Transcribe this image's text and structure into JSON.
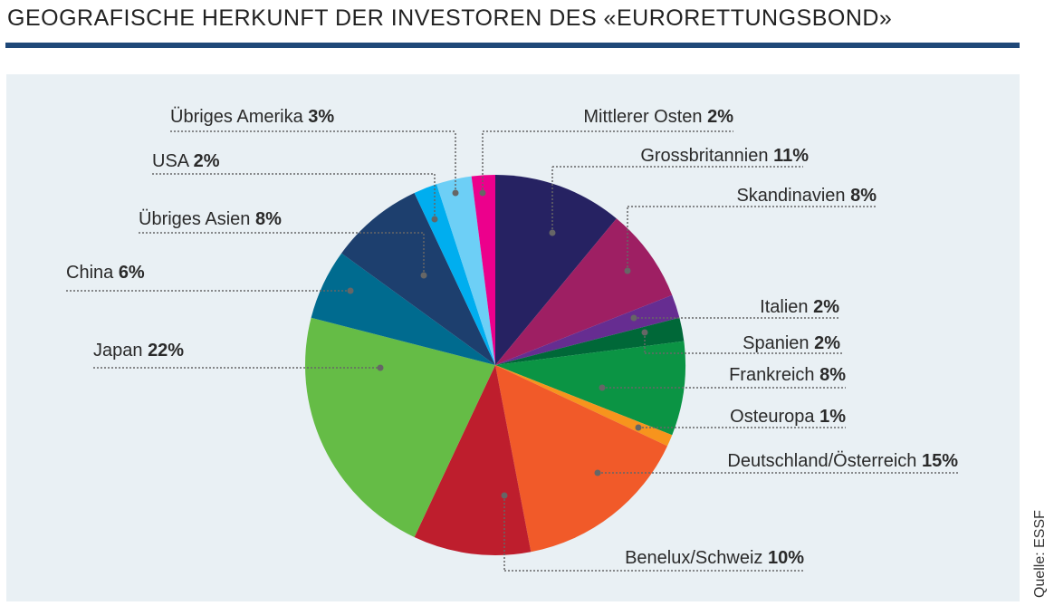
{
  "title": "GEOGRAFISCHE HERKUNFT DER INVESTOREN DES «EURORETTUNGSBOND»",
  "source": "Quelle: ESSF",
  "chart_data": {
    "type": "pie",
    "title": "GEOGRAFISCHE HERKUNFT DER INVESTOREN DES «EURORETTUNGSBOND»",
    "start": "12 o'clock, clockwise",
    "slices": [
      {
        "label": "Grossbritannien",
        "value": 11,
        "pct": "11%",
        "color": "#262262"
      },
      {
        "label": "Skandinavien",
        "value": 8,
        "pct": "8%",
        "color": "#9e1f63"
      },
      {
        "label": "Italien",
        "value": 2,
        "pct": "2%",
        "color": "#662d91"
      },
      {
        "label": "Spanien",
        "value": 2,
        "pct": "2%",
        "color": "#006838"
      },
      {
        "label": "Frankreich",
        "value": 8,
        "pct": "8%",
        "color": "#0b9444"
      },
      {
        "label": "Osteuropa",
        "value": 1,
        "pct": "1%",
        "color": "#f7941d"
      },
      {
        "label": "Deutschland/Österreich",
        "value": 15,
        "pct": "15%",
        "color": "#f15a29"
      },
      {
        "label": "Benelux/Schweiz",
        "value": 10,
        "pct": "10%",
        "color": "#be1e2d"
      },
      {
        "label": "Japan",
        "value": 22,
        "pct": "22%",
        "color": "#65bc46"
      },
      {
        "label": "China",
        "value": 6,
        "pct": "6%",
        "color": "#006b8f"
      },
      {
        "label": "Übriges Asien",
        "value": 8,
        "pct": "8%",
        "color": "#1d3f6e"
      },
      {
        "label": "USA",
        "value": 2,
        "pct": "2%",
        "color": "#00aeef"
      },
      {
        "label": "Übriges Amerika",
        "value": 3,
        "pct": "3%",
        "color": "#6dcff6"
      },
      {
        "label": "Mittlerer Osten",
        "value": 2,
        "pct": "2%",
        "color": "#ec008c"
      }
    ]
  }
}
